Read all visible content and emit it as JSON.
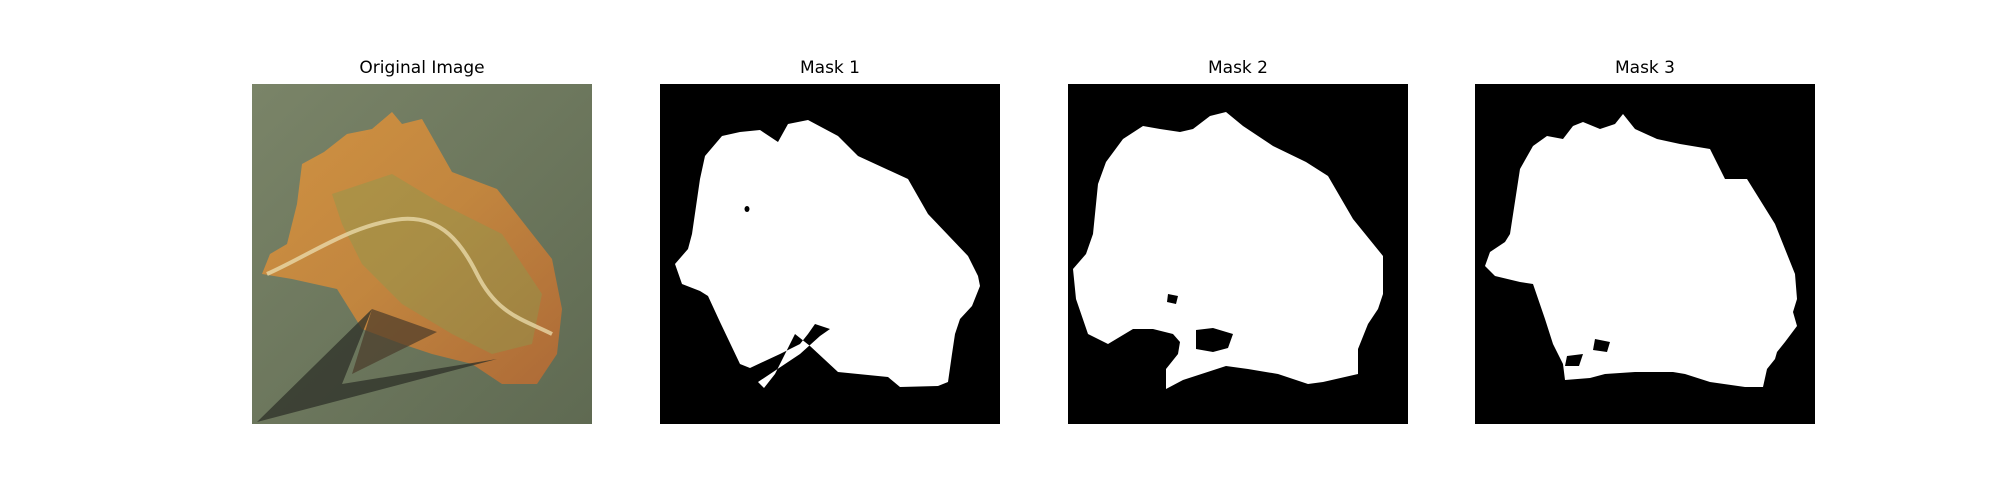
{
  "figure": {
    "panels": [
      {
        "title": "Original Image",
        "kind": "photo"
      },
      {
        "title": "Mask 1",
        "kind": "mask"
      },
      {
        "title": "Mask 2",
        "kind": "mask"
      },
      {
        "title": "Mask 3",
        "kind": "mask"
      }
    ],
    "colors": {
      "background": "#ffffff",
      "mask_background": "#000000",
      "mask_foreground": "#ffffff",
      "photo_background": "#6f7a62",
      "leaf_orange": "#d98a3e",
      "leaf_green": "#8c9a4e",
      "shadow": "#2e3028"
    }
  }
}
